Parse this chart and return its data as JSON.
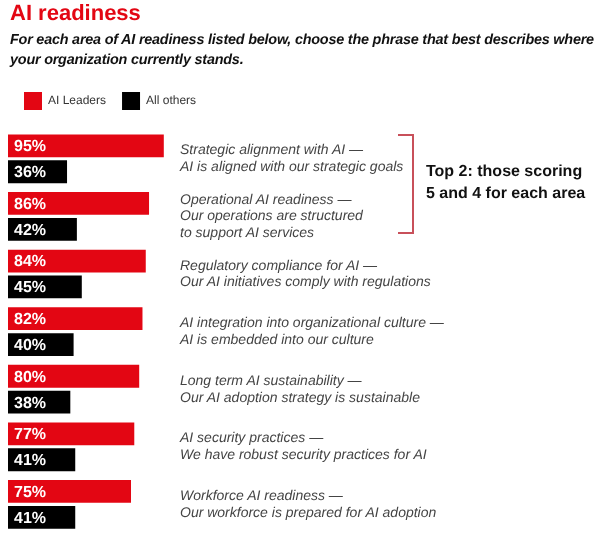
{
  "chart_data": {
    "type": "bar",
    "orientation": "horizontal",
    "title": "AI readiness",
    "subtitle": "For each area of AI readiness listed below, choose the phrase that best describes where your organization currently stands.",
    "categories": [
      "Strategic alignment with AI —\nAI is aligned with our strategic goals",
      "Operational AI readiness —\nOur operations are structured\nto support AI services",
      "Regulatory compliance for AI —\nOur AI initiatives comply with regulations",
      "AI integration into organizational culture —\nAI is embedded into our culture",
      "Long term AI sustainability —\nOur AI adoption strategy is sustainable",
      "AI security practices —\nWe have robust security practices for AI",
      "Workforce AI readiness —\nOur workforce is prepared for AI adoption"
    ],
    "series": [
      {
        "name": "AI Leaders",
        "color": "#e30613",
        "values": [
          95,
          86,
          84,
          82,
          80,
          77,
          75
        ],
        "value_labels": [
          "95%",
          "86%",
          "84%",
          "82%",
          "80%",
          "77%",
          "75%"
        ]
      },
      {
        "name": "All others",
        "color": "#000000",
        "values": [
          36,
          42,
          45,
          40,
          38,
          41,
          41
        ],
        "value_labels": [
          "36%",
          "42%",
          "45%",
          "40%",
          "38%",
          "41%",
          "41%"
        ]
      }
    ],
    "tick_labels": "y",
    "grid": false,
    "legend": "top",
    "annotations": [
      "Top 2: those scoring 5 and 4 for each area"
    ]
  }
}
